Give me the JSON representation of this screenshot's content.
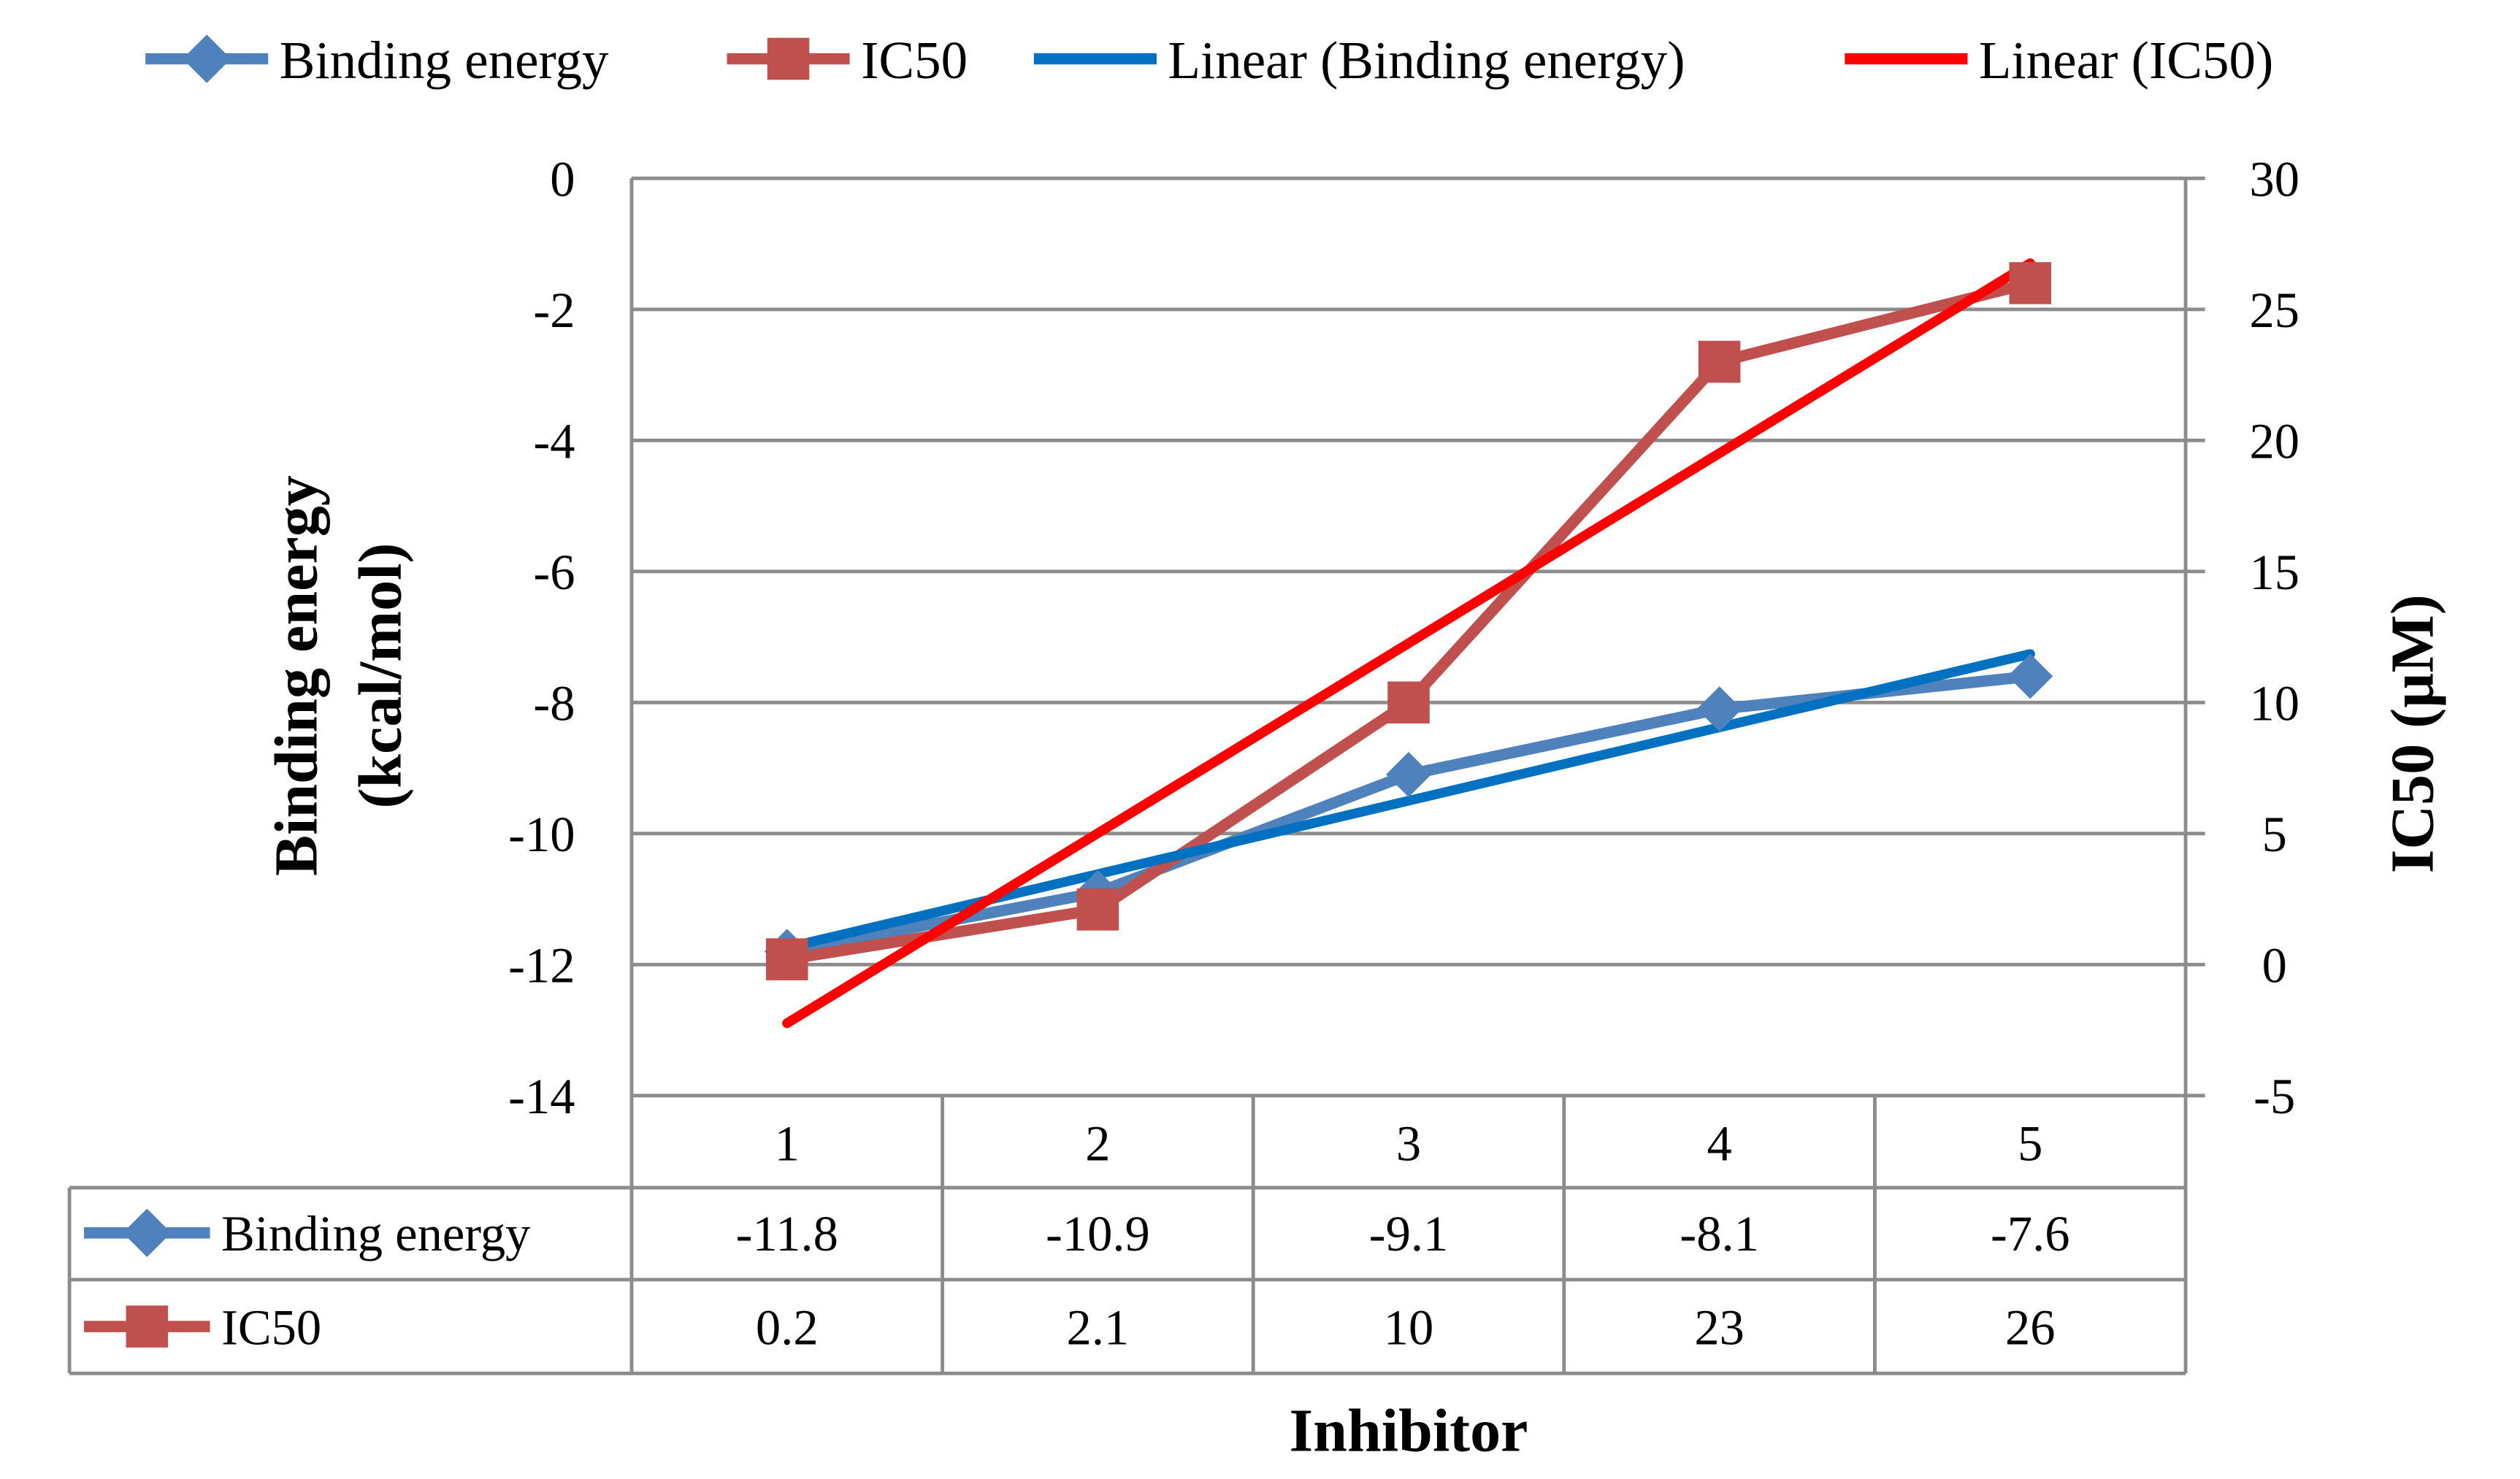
{
  "chart_data": {
    "type": "line",
    "xlabel": "Inhibitor",
    "categories": [
      "1",
      "2",
      "3",
      "4",
      "5"
    ],
    "y_left": {
      "label": "Binding energy (kcal/mol)",
      "label_lines": [
        "Binding energy",
        "(kcal/mol)"
      ],
      "range": [
        -14,
        0
      ],
      "ticks": [
        "0",
        "-2",
        "-4",
        "-6",
        "-8",
        "-10",
        "-12",
        "-14"
      ]
    },
    "y_right": {
      "label": "IC50 (µM)",
      "range": [
        -5,
        30
      ],
      "ticks": [
        "30",
        "25",
        "20",
        "15",
        "10",
        "5",
        "0",
        "-5"
      ]
    },
    "grid": true,
    "legend_position": "top",
    "series": [
      {
        "name": "Binding energy",
        "axis": "left",
        "marker": "diamond",
        "color": "#4F81BD",
        "values": [
          -11.8,
          -10.9,
          -9.1,
          -8.1,
          -7.6
        ],
        "labels": [
          "-11.8",
          "-10.9",
          "-9.1",
          "-8.1",
          "-7.6"
        ]
      },
      {
        "name": "IC50",
        "axis": "right",
        "marker": "square",
        "color": "#C0504D",
        "values": [
          0.2,
          2.1,
          10,
          23,
          26
        ],
        "labels": [
          "0.2",
          "2.1",
          "10",
          "23",
          "26"
        ]
      }
    ],
    "trendlines": [
      {
        "name": "Linear (Binding energy)",
        "of": "Binding energy",
        "type": "linear",
        "color": "#0070C0"
      },
      {
        "name": "Linear (IC50)",
        "of": "IC50",
        "type": "linear",
        "color": "#FF0000"
      }
    ],
    "data_table": true
  }
}
